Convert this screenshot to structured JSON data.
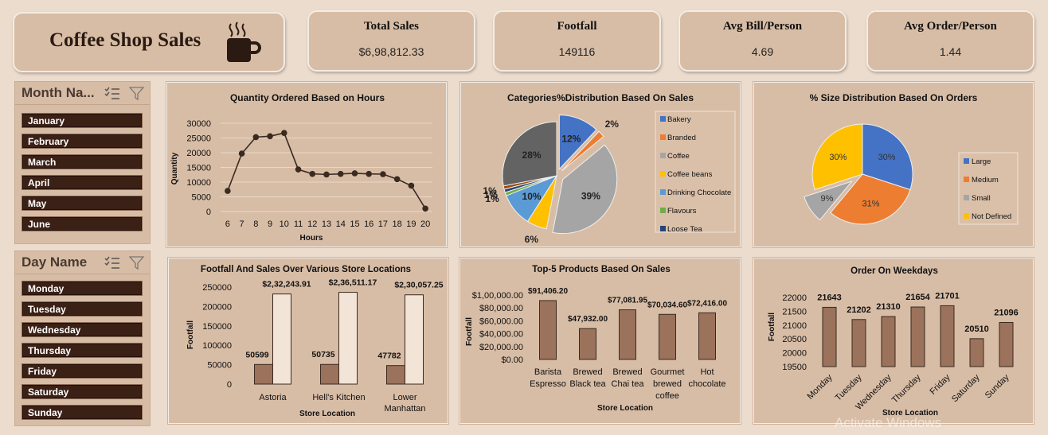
{
  "header": {
    "title": "Coffee Shop Sales"
  },
  "kpis": [
    {
      "title": "Total Sales",
      "value": "$6,98,812.33"
    },
    {
      "title": "Footfall",
      "value": "149116"
    },
    {
      "title": "Avg Bill/Person",
      "value": "4.69"
    },
    {
      "title": "Avg Order/Person",
      "value": "1.44"
    }
  ],
  "slicers": {
    "month": {
      "title": "Month Na...",
      "items": [
        "January",
        "February",
        "March",
        "April",
        "May",
        "June"
      ]
    },
    "day": {
      "title": "Day Name",
      "items": [
        "Monday",
        "Tuesday",
        "Wednesday",
        "Thursday",
        "Friday",
        "Saturday",
        "Sunday"
      ]
    }
  },
  "watermark": "Activate Windows",
  "colors": {
    "bar_brown": "#9b725b",
    "bar_cream": "#f2e4d6",
    "line": "#3a2a20",
    "slicer_item": "#3b2015",
    "card_bg": "#d8bda6",
    "page_bg": "#ecdccd"
  },
  "chart_data": [
    {
      "type": "line",
      "title": "Quantity Ordered Based on Hours",
      "xlabel": "Hours",
      "ylabel": "Quantity",
      "x": [
        6,
        7,
        8,
        9,
        10,
        11,
        12,
        13,
        14,
        15,
        16,
        17,
        18,
        19,
        20
      ],
      "values": [
        7000,
        19700,
        25300,
        25600,
        26700,
        14300,
        12800,
        12600,
        12800,
        13000,
        12800,
        12700,
        11000,
        8800,
        1000
      ],
      "ylim": [
        0,
        30000
      ],
      "yticks": [
        "0",
        "5000",
        "10000",
        "15000",
        "20000",
        "25000",
        "30000"
      ],
      "grid": true
    },
    {
      "type": "pie",
      "title": "Categories%Distribution Based On Sales",
      "legend_position": "right",
      "slices": [
        {
          "name": "Bakery",
          "value": 12,
          "label": "12%",
          "color": "#4472c4"
        },
        {
          "name": "Branded",
          "value": 2,
          "label": "2%",
          "color": "#ed7d31"
        },
        {
          "name": "Coffee",
          "value": 39,
          "label": "39%",
          "color": "#a5a5a5"
        },
        {
          "name": "Coffee beans",
          "value": 6,
          "label": "6%",
          "color": "#ffc000"
        },
        {
          "name": "Drinking Chocolate",
          "value": 10,
          "label": "10%",
          "color": "#5b9bd5"
        },
        {
          "name": "Flavours",
          "value": 1,
          "label": "1%",
          "color": "#70ad47"
        },
        {
          "name": "Loose Tea",
          "value": 1,
          "label": "1%",
          "color": "#264478"
        },
        {
          "name": "",
          "value": 1,
          "label": "1%",
          "color": "#9e480e"
        },
        {
          "name": "",
          "value": 28,
          "label": "28%",
          "color": "#636363"
        }
      ]
    },
    {
      "type": "pie",
      "title": "% Size Distribution Based On Orders",
      "legend_position": "right",
      "slices": [
        {
          "name": "Large",
          "value": 30,
          "label": "30%",
          "color": "#4472c4"
        },
        {
          "name": "Medium",
          "value": 31,
          "label": "31%",
          "color": "#ed7d31"
        },
        {
          "name": "Small",
          "value": 9,
          "label": "9%",
          "color": "#a5a5a5"
        },
        {
          "name": "Not Defined",
          "value": 30,
          "label": "30%",
          "color": "#ffc000"
        }
      ]
    },
    {
      "type": "bar",
      "title": "Footfall And Sales Over Various Store Locations",
      "xlabel": "Store Location",
      "ylabel": "Footfall",
      "categories": [
        "Astoria",
        "Hell's Kitchen",
        "Lower Manhattan"
      ],
      "category_lines": [
        [
          "Astoria"
        ],
        [
          "Hell's Kitchen"
        ],
        [
          "Lower",
          "Manhattan"
        ]
      ],
      "series": [
        {
          "name": "Footfall",
          "values": [
            50599,
            50735,
            47782
          ],
          "labels": [
            "50599",
            "50735",
            "47782"
          ],
          "color": "#9b725b"
        },
        {
          "name": "Sales",
          "values": [
            232243.91,
            236511.17,
            230057.25
          ],
          "labels": [
            "$2,32,243.91",
            "$2,36,511.17",
            "$2,30,057.25"
          ],
          "color": "#f2e4d6"
        }
      ],
      "ylim": [
        0,
        250000
      ],
      "yticks": [
        "0",
        "50000",
        "100000",
        "150000",
        "200000",
        "250000"
      ]
    },
    {
      "type": "bar",
      "title": "Top-5 Products Based On Sales",
      "xlabel": "Store Location",
      "ylabel": "Footfall",
      "categories": [
        "Barista Espresso",
        "Brewed Black tea",
        "Brewed Chai tea",
        "Gourmet brewed coffee",
        "Hot chocolate"
      ],
      "category_lines": [
        [
          "Barista",
          "Espresso"
        ],
        [
          "Brewed",
          "Black tea"
        ],
        [
          "Brewed",
          "Chai tea"
        ],
        [
          "Gourmet",
          "brewed",
          "coffee"
        ],
        [
          "Hot",
          "chocolate"
        ]
      ],
      "values": [
        91406.2,
        47932.0,
        77081.95,
        70034.6,
        72416.0
      ],
      "labels": [
        "$91,406.20",
        "$47,932.00",
        "$77,081.95",
        "$70,034.60",
        "$72,416.00"
      ],
      "ylim": [
        0,
        100000
      ],
      "yticks": [
        "$0.00",
        "$20,000.00",
        "$40,000.00",
        "$60,000.00",
        "$80,000.00",
        "$1,00,000.00"
      ]
    },
    {
      "type": "bar",
      "title": "Order On Weekdays",
      "xlabel": "Store Location",
      "ylabel": "Footfall",
      "categories": [
        "Monday",
        "Tuesday",
        "Wednesday",
        "Thursday",
        "Friday",
        "Saturday",
        "Sunday"
      ],
      "values": [
        21643,
        21202,
        21310,
        21654,
        21701,
        20510,
        21096
      ],
      "labels": [
        "21643",
        "21202",
        "21310",
        "21654",
        "21701",
        "20510",
        "21096"
      ],
      "ylim": [
        19500,
        22000
      ],
      "yticks": [
        "19500",
        "20000",
        "20500",
        "21000",
        "21500",
        "22000"
      ]
    }
  ]
}
